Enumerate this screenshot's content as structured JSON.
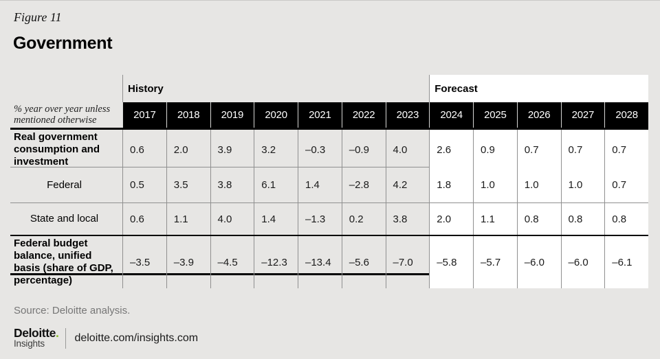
{
  "page": {
    "figure_label": "Figure 11",
    "title": "Government",
    "source": "Source: Deloitte analysis.",
    "background_color": "#e7e6e4",
    "accent_black": "#000000",
    "forecast_bg": "#ffffff",
    "grid_line_color": "#8f8f8f"
  },
  "table": {
    "unit_note": "% year over year unless mentioned otherwise",
    "history_label": "History",
    "forecast_label": "Forecast",
    "history_years": [
      "2017",
      "2018",
      "2019",
      "2020",
      "2021",
      "2022",
      "2023"
    ],
    "forecast_years": [
      "2024",
      "2025",
      "2026",
      "2027",
      "2028"
    ],
    "rows": [
      {
        "label": "Real government consumption and investment",
        "history": [
          "0.6",
          "2.0",
          "3.9",
          "3.2",
          "–0.3",
          "–0.9",
          "4.0"
        ],
        "forecast": [
          "2.6",
          "0.9",
          "0.7",
          "0.7",
          "0.7"
        ]
      },
      {
        "label": "Federal",
        "history": [
          "0.5",
          "3.5",
          "3.8",
          "6.1",
          "1.4",
          "–2.8",
          "4.2"
        ],
        "forecast": [
          "1.8",
          "1.0",
          "1.0",
          "1.0",
          "0.7"
        ]
      },
      {
        "label": "State and local",
        "history": [
          "0.6",
          "1.1",
          "4.0",
          "1.4",
          "–1.3",
          "0.2",
          "3.8"
        ],
        "forecast": [
          "2.0",
          "1.1",
          "0.8",
          "0.8",
          "0.8"
        ]
      },
      {
        "label": "Federal budget balance, unified basis (share of GDP, percentage)",
        "history": [
          "–3.5",
          "–3.9",
          "–4.5",
          "–12.3",
          "–13.4",
          "–5.6",
          "–7.0"
        ],
        "forecast": [
          "–5.8",
          "–5.7",
          "–6.0",
          "–6.0",
          "–6.1"
        ]
      }
    ]
  },
  "footer": {
    "logo_main": "Deloitte",
    "logo_dot": ".",
    "logo_sub": "Insights",
    "logo_dot_color": "#86bc25",
    "url": "deloitte.com/insights.com"
  },
  "chart_data": {
    "type": "table",
    "title": "Government",
    "figure": "Figure 11",
    "unit": "% year over year unless mentioned otherwise",
    "columns": [
      "2017",
      "2018",
      "2019",
      "2020",
      "2021",
      "2022",
      "2023",
      "2024",
      "2025",
      "2026",
      "2027",
      "2028"
    ],
    "column_groups": [
      {
        "label": "History",
        "columns": [
          "2017",
          "2018",
          "2019",
          "2020",
          "2021",
          "2022",
          "2023"
        ]
      },
      {
        "label": "Forecast",
        "columns": [
          "2024",
          "2025",
          "2026",
          "2027",
          "2028"
        ]
      }
    ],
    "rows": [
      {
        "label": "Real government consumption and investment",
        "values": [
          0.6,
          2.0,
          3.9,
          3.2,
          -0.3,
          -0.9,
          4.0,
          2.6,
          0.9,
          0.7,
          0.7,
          0.7
        ]
      },
      {
        "label": "Federal",
        "values": [
          0.5,
          3.5,
          3.8,
          6.1,
          1.4,
          -2.8,
          4.2,
          1.8,
          1.0,
          1.0,
          1.0,
          0.7
        ]
      },
      {
        "label": "State and local",
        "values": [
          0.6,
          1.1,
          4.0,
          1.4,
          -1.3,
          0.2,
          3.8,
          2.0,
          1.1,
          0.8,
          0.8,
          0.8
        ]
      },
      {
        "label": "Federal budget balance, unified basis (share of GDP, percentage)",
        "values": [
          -3.5,
          -3.9,
          -4.5,
          -12.3,
          -13.4,
          -5.6,
          -7.0,
          -5.8,
          -5.7,
          -6.0,
          -6.0,
          -6.1
        ]
      }
    ],
    "source": "Source: Deloitte analysis."
  }
}
